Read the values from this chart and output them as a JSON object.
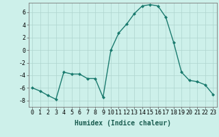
{
  "x": [
    0,
    1,
    2,
    3,
    4,
    5,
    6,
    7,
    8,
    9,
    10,
    11,
    12,
    13,
    14,
    15,
    16,
    17,
    18,
    19,
    20,
    21,
    22,
    23
  ],
  "y": [
    -6.0,
    -6.5,
    -7.2,
    -7.8,
    -3.5,
    -3.8,
    -3.8,
    -4.5,
    -4.5,
    -7.5,
    0.0,
    2.7,
    4.1,
    5.8,
    7.0,
    7.2,
    7.0,
    5.2,
    1.2,
    -3.5,
    -4.8,
    -5.0,
    -5.5,
    -7.0
  ],
  "line_color": "#1a7a6e",
  "marker": "D",
  "marker_size": 2.0,
  "bg_color": "#cdf0ea",
  "grid_color": "#aed4ce",
  "xlabel": "Humidex (Indice chaleur)",
  "ylim": [
    -9,
    7.5
  ],
  "xlim": [
    -0.5,
    23.5
  ],
  "yticks": [
    -8,
    -6,
    -4,
    -2,
    0,
    2,
    4,
    6
  ],
  "xticks": [
    0,
    1,
    2,
    3,
    4,
    5,
    6,
    7,
    8,
    9,
    10,
    11,
    12,
    13,
    14,
    15,
    16,
    17,
    18,
    19,
    20,
    21,
    22,
    23
  ],
  "xlabel_fontsize": 7.0,
  "tick_fontsize": 6.0,
  "line_width": 1.0
}
